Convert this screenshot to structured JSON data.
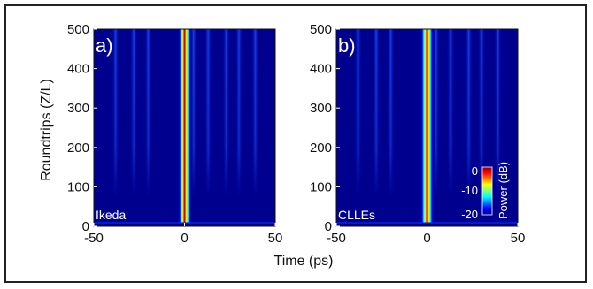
{
  "chart_data": [
    {
      "type": "heatmap",
      "panel_letter": "a)",
      "panel_name": "Ikeda",
      "xlim": [
        -50,
        50
      ],
      "ylim": [
        0,
        500
      ],
      "xticks": [
        "-50",
        "0",
        "50"
      ],
      "yticks": [
        "0",
        "100",
        "200",
        "300",
        "400",
        "500"
      ],
      "pulse_center_ps": 0,
      "pulse_width_ps": 1.5,
      "side_streaks_ps": [
        -38,
        -28,
        -20,
        5,
        13,
        23,
        30,
        39
      ]
    },
    {
      "type": "heatmap",
      "panel_letter": "b)",
      "panel_name": "CLLEs",
      "xlim": [
        -50,
        50
      ],
      "ylim": [
        0,
        500
      ],
      "xticks": [
        "-50",
        "0",
        "50"
      ],
      "yticks": [
        "0",
        "100",
        "200",
        "300",
        "400",
        "500"
      ],
      "pulse_center_ps": 0,
      "pulse_width_ps": 1.5,
      "side_streaks_ps": [
        -38,
        -28,
        -20,
        5,
        13,
        23,
        30,
        39
      ]
    }
  ],
  "axes": {
    "ylabel": "Roundtrips (Z/L)",
    "xlabel": "Time (ps)"
  },
  "colorbar": {
    "label": "Power (dB)",
    "ticks": [
      "0",
      "-10",
      "-20"
    ],
    "range_db": [
      -20,
      0
    ]
  },
  "colors": {
    "background": "#00008f",
    "pulse_core": "#8b0000",
    "streak": "#1a4cff"
  }
}
